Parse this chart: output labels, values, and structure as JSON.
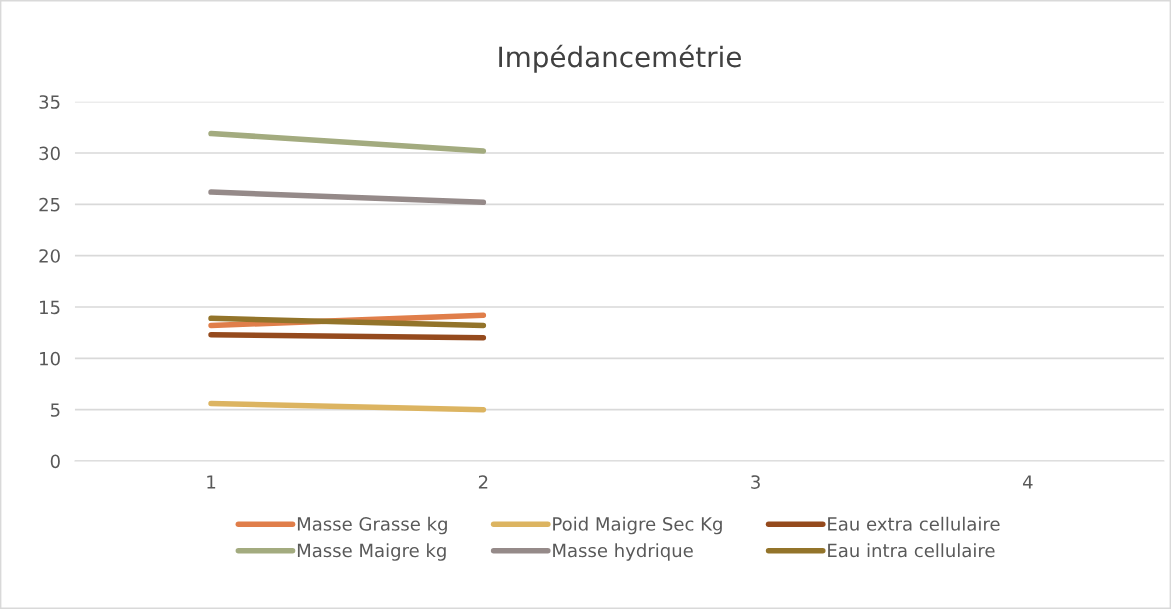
{
  "chart_data": {
    "type": "line",
    "title": "Impédancemétrie",
    "categories": [
      "1",
      "2",
      "3",
      "4"
    ],
    "series": [
      {
        "name": "Masse Grasse kg",
        "color": "#e07e4a",
        "values": [
          13.2,
          14.2,
          null,
          null
        ]
      },
      {
        "name": "Masse Maigre kg",
        "color": "#a3ab7f",
        "values": [
          31.9,
          30.2,
          null,
          null
        ]
      },
      {
        "name": "Poid Maigre Sec Kg",
        "color": "#dcb461",
        "values": [
          5.6,
          5.0,
          null,
          null
        ]
      },
      {
        "name": "Masse hydrique",
        "color": "#958a89",
        "values": [
          26.2,
          25.2,
          null,
          null
        ]
      },
      {
        "name": "Eau extra cellulaire",
        "color": "#954a1d",
        "values": [
          12.3,
          12.0,
          null,
          null
        ]
      },
      {
        "name": "Eau intra cellulaire",
        "color": "#93742a",
        "values": [
          13.9,
          13.2,
          null,
          null
        ]
      }
    ],
    "ylim": [
      0,
      35
    ],
    "yticks": [
      0,
      5,
      10,
      15,
      20,
      25,
      30,
      35
    ],
    "grid": "y",
    "legend": "bottom",
    "marker": "none",
    "line_style": "solid"
  }
}
